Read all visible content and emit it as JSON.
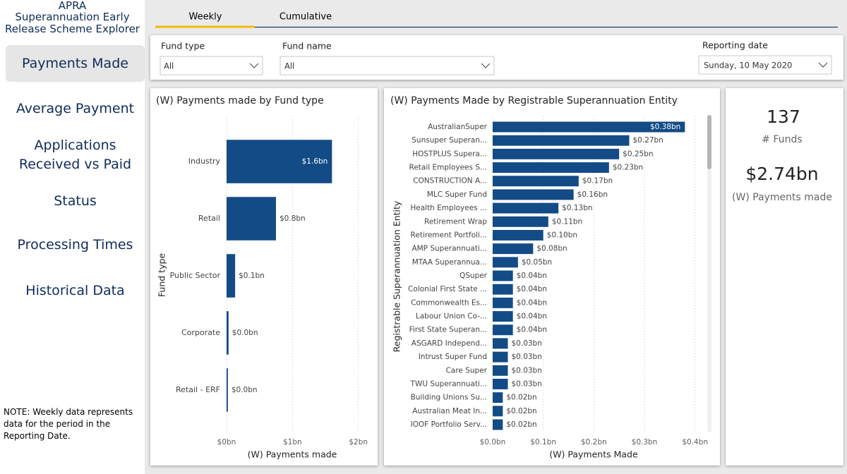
{
  "header": {
    "org": "APRA",
    "title": "Superannuation Early Release Scheme Explorer"
  },
  "nav": [
    "Payments Made",
    "Average Payment",
    "Applications Received vs Paid",
    "Status",
    "Processing Times",
    "Historical Data"
  ],
  "note": "NOTE: Weekly data represents data for the period in the Reporting Date.",
  "tabs": [
    "Weekly",
    "Cumulative"
  ],
  "filters": [
    {
      "label": "Fund type",
      "value": "All"
    },
    {
      "label": "Fund name",
      "value": "All"
    },
    {
      "label": "Reporting date",
      "value": "Sunday, 10 May 2020"
    }
  ],
  "kpis": [
    {
      "value": "137",
      "label": "# Funds"
    },
    {
      "value": "$2.74bn",
      "label": "(W) Payments made"
    }
  ],
  "chart_data": [
    {
      "type": "bar",
      "orientation": "horizontal",
      "title": "(W) Payments made by Fund type",
      "x_label": "(W) Payments made",
      "y_label": "Fund type",
      "categories": [
        "Industry",
        "Retail",
        "Public Sector",
        "Corporate",
        "Retail - ERF"
      ],
      "values": [
        1.6,
        0.75,
        0.13,
        0.03,
        0.02
      ],
      "value_labels": [
        "$1.6bn",
        "$0.8bn",
        "$0.1bn",
        "$0.0bn",
        "$0.0bn"
      ],
      "color": "#134b86",
      "xlim": [
        0,
        2.1
      ],
      "xticks": [
        {
          "value": 0,
          "label": "$0bn"
        },
        {
          "value": 1,
          "label": "$1bn"
        },
        {
          "value": 2,
          "label": "$2bn"
        }
      ],
      "grid": true
    },
    {
      "type": "bar",
      "orientation": "horizontal",
      "title": "(W) Payments Made by Registrable Superannuation Entity",
      "x_label": "(W) Payments Made",
      "y_label": "Registrable Superannuation Entity",
      "categories": [
        "AustralianSuper",
        "Sunsuper Superan...",
        "HOSTPLUS Supera...",
        "Retail Employees S...",
        "CONSTRUCTION A...",
        "MLC Super Fund",
        "Health Employees ...",
        "Retirement Wrap",
        "Retirement Portfoli...",
        "AMP Superannuati...",
        "MTAA Superannua...",
        "QSuper",
        "Colonial First State ...",
        "Commonwealth Es...",
        "Labour Union Co-...",
        "First State Superan...",
        "ASGARD Independ...",
        "Intrust Super Fund",
        "Care Super",
        "TWU Superannuati...",
        "Building Unions Su...",
        "Australian Meat In...",
        "IOOF Portfolio Serv..."
      ],
      "values": [
        0.38,
        0.27,
        0.25,
        0.23,
        0.17,
        0.16,
        0.13,
        0.11,
        0.1,
        0.08,
        0.05,
        0.04,
        0.04,
        0.04,
        0.04,
        0.04,
        0.03,
        0.03,
        0.03,
        0.03,
        0.02,
        0.02,
        0.02
      ],
      "value_labels": [
        "$0.38bn",
        "$0.27bn",
        "$0.25bn",
        "$0.23bn",
        "$0.17bn",
        "$0.16bn",
        "$0.13bn",
        "$0.11bn",
        "$0.10bn",
        "$0.08bn",
        "$0.05bn",
        "$0.04bn",
        "$0.04bn",
        "$0.04bn",
        "$0.04bn",
        "$0.04bn",
        "$0.03bn",
        "$0.03bn",
        "$0.03bn",
        "$0.03bn",
        "$0.02bn",
        "$0.02bn",
        "$0.02bn"
      ],
      "color": "#134b86",
      "xlim": [
        0,
        0.42
      ],
      "xticks": [
        {
          "value": 0,
          "label": "$0.0bn"
        },
        {
          "value": 0.1,
          "label": "$0.1bn"
        },
        {
          "value": 0.2,
          "label": "$0.2bn"
        },
        {
          "value": 0.3,
          "label": "$0.3bn"
        },
        {
          "value": 0.4,
          "label": "$0.4bn"
        }
      ],
      "grid": true
    }
  ]
}
